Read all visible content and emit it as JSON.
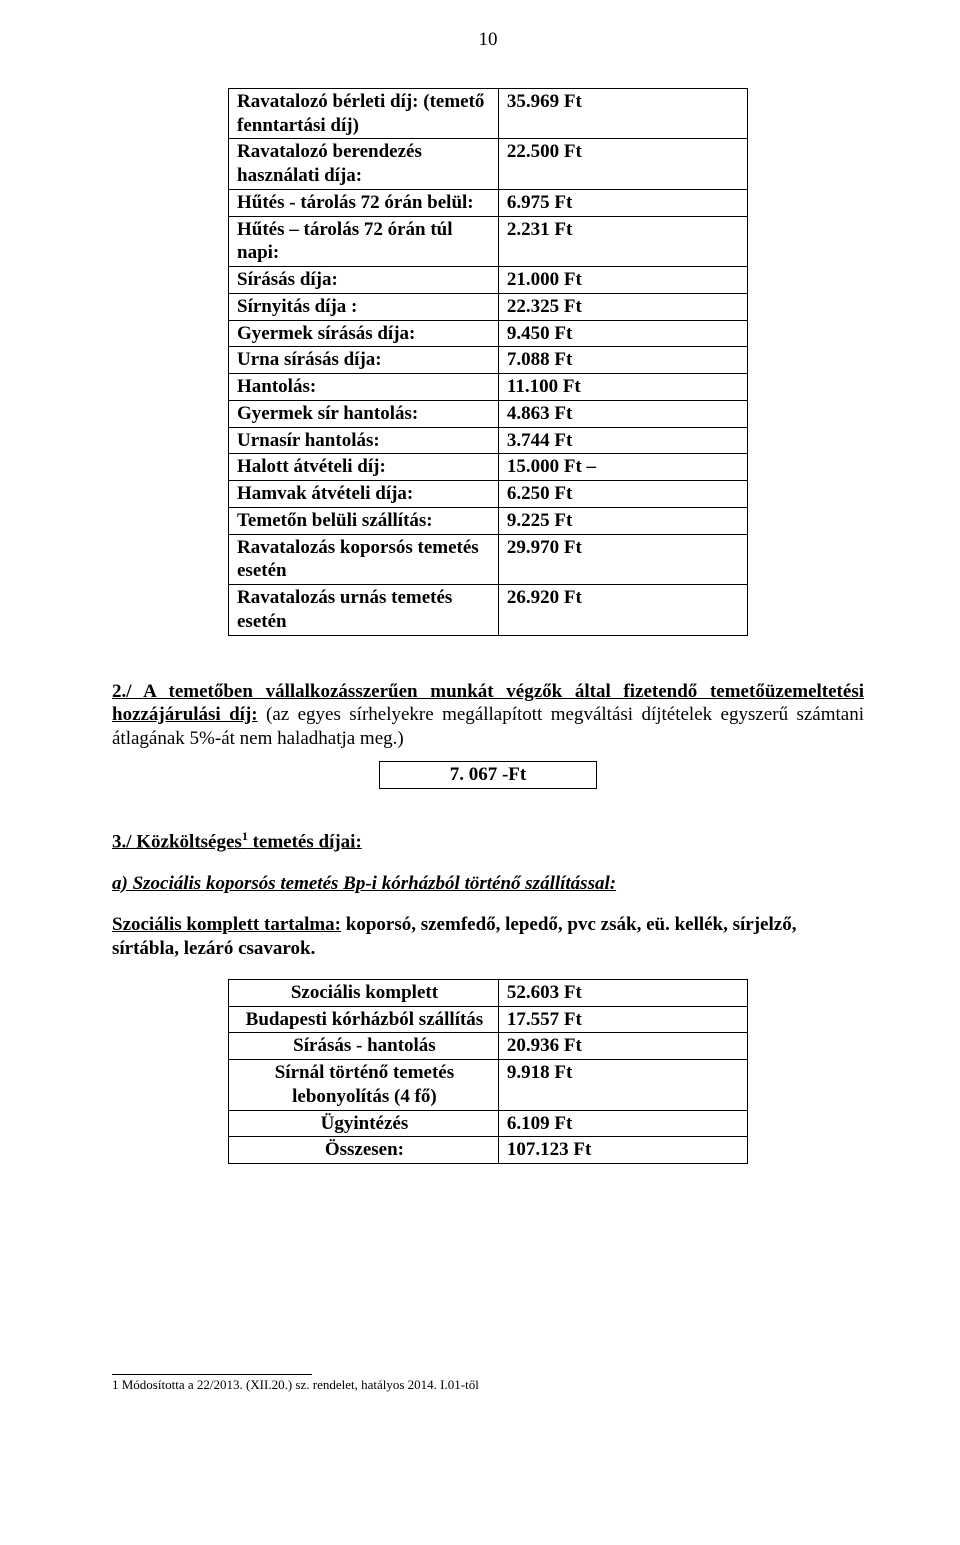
{
  "page_number": "10",
  "fees_table": {
    "type": "table",
    "columns": [
      "label",
      "value"
    ],
    "rows": [
      {
        "label": "Ravatalozó bérleti díj: (temető fenntartási díj)",
        "value": "35.969 Ft"
      },
      {
        "label": "Ravatalozó berendezés használati díja:",
        "value": "22.500 Ft"
      },
      {
        "label": "Hűtés - tárolás 72 órán belül:",
        "value": "6.975 Ft"
      },
      {
        "label": "Hűtés – tárolás 72 órán túl napi:",
        "value": "2.231 Ft"
      },
      {
        "label": "Sírásás díja:",
        "value": "21.000 Ft"
      },
      {
        "label": "Sírnyitás díja :",
        "value": "22.325 Ft"
      },
      {
        "label": "Gyermek sírásás díja:",
        "value": "9.450 Ft"
      },
      {
        "label": "Urna sírásás díja:",
        "value": "7.088 Ft"
      },
      {
        "label": "Hantolás:",
        "value": "11.100 Ft"
      },
      {
        "label": "Gyermek sír hantolás:",
        "value": "4.863 Ft"
      },
      {
        "label": "Urnasír hantolás:",
        "value": "3.744 Ft"
      },
      {
        "label": "Halott átvételi díj:",
        "value": "15.000 Ft –"
      },
      {
        "label": "Hamvak átvételi díja:",
        "value": "6.250 Ft"
      },
      {
        "label": "Temetőn belüli szállítás:",
        "value": "9.225 Ft"
      },
      {
        "label": "Ravatalozás koporsós temetés esetén",
        "value": "29.970 Ft"
      },
      {
        "label": "Ravatalozás urnás temetés esetén",
        "value": "26.920 Ft"
      }
    ]
  },
  "section2": {
    "lead_bold_underline": "2./ A temetőben vállalkozásszerűen munkát végzők által fizetendő temetőüzemeltetési hozzájárulási díj:",
    "rest": " (az egyes sírhelyekre megállapított megváltási díjtételek egyszerű számtani átlagának 5%-át nem haladhatja meg.)",
    "box_value": "7. 067 -Ft"
  },
  "section3": {
    "heading_prefix": "3./ Közköltséges",
    "heading_suffix": " temetés díjai:",
    "sup": "1",
    "sub_a": "a) Szociális koporsós temetés Bp-i kórházból történő szállítással:",
    "content_underline": "Szociális komplett tartalma:",
    "content_rest": " koporsó, szemfedő, lepedő, pvc zsák, eü. kellék, sírjelző, sírtábla, lezáró csavarok.",
    "table": {
      "type": "table",
      "columns": [
        "label",
        "value"
      ],
      "rows": [
        {
          "label": "Szociális komplett",
          "value": "52.603 Ft"
        },
        {
          "label": "Budapesti kórházból szállítás",
          "value": "17.557 Ft"
        },
        {
          "label": "Sírásás - hantolás",
          "value": "20.936 Ft"
        },
        {
          "label": "Sírnál történő temetés lebonyolítás (4 fő)",
          "value": "9.918 Ft"
        },
        {
          "label": "Ügyintézés",
          "value": "6.109 Ft"
        },
        {
          "label": "Összesen:",
          "value": "107.123 Ft"
        }
      ]
    }
  },
  "footnote": {
    "marker": "1",
    "text": " Módosította a 22/2013. (XII.20.) sz. rendelet, hatályos 2014. I.01-től"
  }
}
